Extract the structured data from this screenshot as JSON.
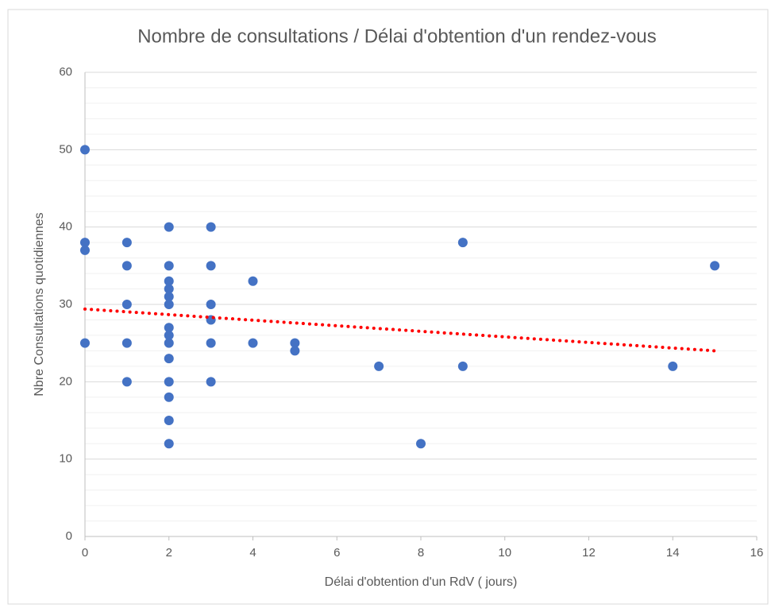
{
  "chart_data": {
    "type": "scatter",
    "title": "Nombre de consultations / Délai d'obtention d'un rendez-vous",
    "x_label": "Délai d'obtention d'un RdV ( jours)",
    "y_label": "Nbre Consultations quotidiennes",
    "series": [
      {
        "color": "#4472c4",
        "x": [
          0,
          0,
          0,
          0,
          1,
          1,
          1,
          1,
          1,
          2,
          2,
          2,
          2,
          2,
          2,
          2,
          2,
          2,
          2,
          2,
          2,
          2,
          2,
          3,
          3,
          3,
          3,
          3,
          3,
          4,
          4,
          5,
          5,
          7,
          8,
          9,
          9,
          14,
          15
        ],
        "values": [
          50,
          38,
          37,
          25,
          38,
          35,
          30,
          25,
          20,
          40,
          35,
          33,
          32,
          31,
          30,
          27,
          26,
          25,
          23,
          20,
          18,
          15,
          12,
          40,
          35,
          30,
          28,
          25,
          20,
          33,
          25,
          25,
          24,
          22,
          12,
          38,
          22,
          22,
          35
        ]
      }
    ],
    "trendline": {
      "color": "#ff0000",
      "x": [
        0,
        15
      ],
      "values": [
        29.4,
        24.0
      ]
    },
    "xlim": [
      0,
      16
    ],
    "xticks": [
      0,
      2,
      4,
      6,
      8,
      10,
      12,
      14,
      16
    ],
    "ylim": [
      0,
      60
    ],
    "yticks": [
      0,
      10,
      20,
      30,
      40,
      50,
      60
    ],
    "yminor_ticks": [
      2,
      4,
      6,
      8,
      12,
      14,
      16,
      18,
      22,
      24,
      26,
      28,
      32,
      34,
      36,
      38,
      42,
      44,
      46,
      48,
      52,
      54,
      56,
      58
    ],
    "grid": true
  }
}
